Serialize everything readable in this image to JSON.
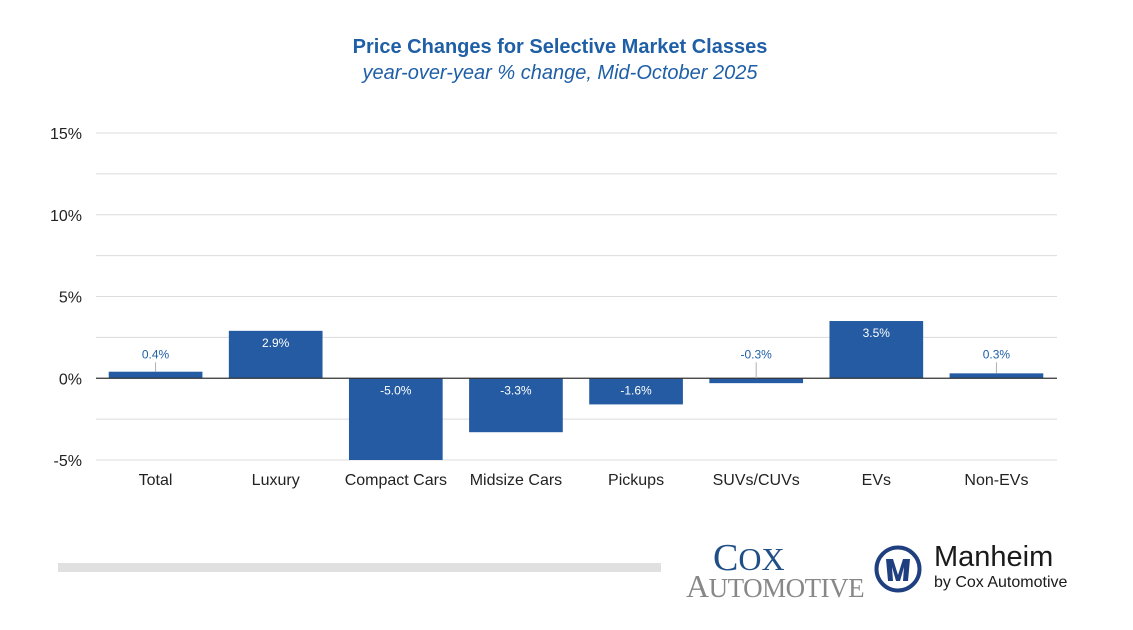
{
  "chart_data": {
    "type": "bar",
    "title": "Price Changes for Selective Market Classes",
    "subtitle": "year-over-year % change, Mid-October 2025",
    "xlabel": "",
    "ylabel": "",
    "categories": [
      "Total",
      "Luxury",
      "Compact Cars",
      "Midsize Cars",
      "Pickups",
      "SUVs/CUVs",
      "EVs",
      "Non-EVs"
    ],
    "values": [
      0.4,
      2.9,
      -5.0,
      -3.3,
      -1.6,
      -0.3,
      3.5,
      0.3
    ],
    "data_labels": [
      "0.4%",
      "2.9%",
      "-5.0%",
      "-3.3%",
      "-1.6%",
      "-0.3%",
      "3.5%",
      "0.3%"
    ],
    "ylim": [
      -5,
      15
    ],
    "yticks": [
      -5,
      0,
      5,
      10,
      15
    ],
    "ytick_labels": [
      "-5%",
      "0%",
      "5%",
      "10%",
      "15%"
    ],
    "minor_gridlines": [
      -2.5,
      2.5,
      7.5,
      12.5
    ],
    "grid": true,
    "legend": "none",
    "bar_color": "#245ba2"
  },
  "footer": {
    "cox_line1": "Cox",
    "cox_line2": "Automotive",
    "manheim_name": "Manheim",
    "manheim_by": "by Cox Automotive",
    "brand_color": "#1f4f86"
  }
}
